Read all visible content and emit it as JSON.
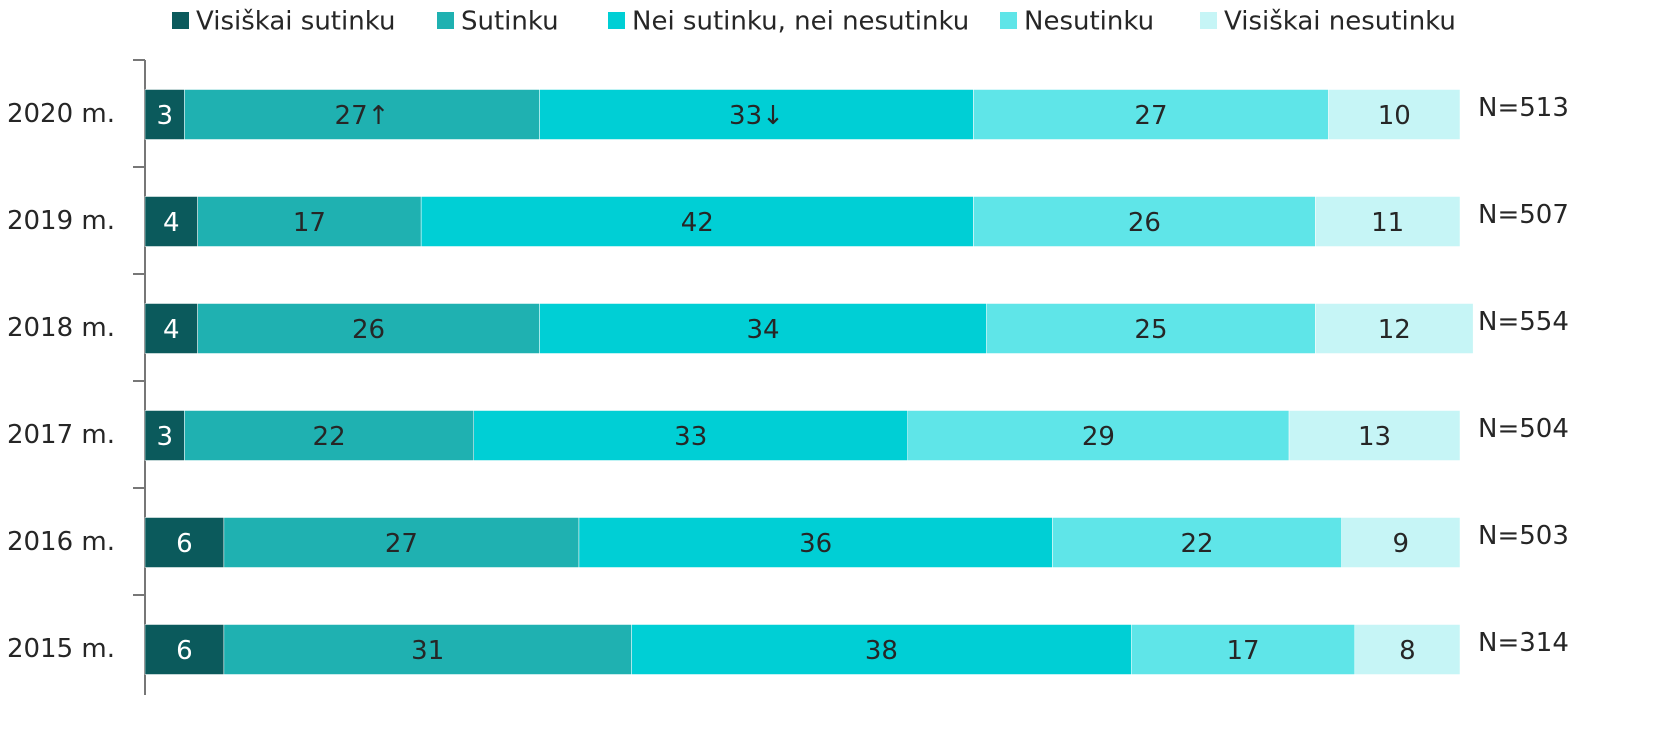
{
  "chart_data": {
    "type": "stacked_barh",
    "categories": [
      "2020 m.",
      "2019 m.",
      "2018 m.",
      "2017 m.",
      "2016 m.",
      "2015 m."
    ],
    "series": [
      {
        "name": "Visiškai sutinku",
        "color": "#0b5a5c",
        "values": [
          3,
          4,
          4,
          3,
          6,
          6
        ]
      },
      {
        "name": "Sutinku",
        "color": "#1fb1b1",
        "values": [
          27,
          17,
          26,
          22,
          27,
          31
        ],
        "value_labels": [
          "27↑",
          "17",
          "26",
          "22",
          "27",
          "31"
        ]
      },
      {
        "name": "Nei sutinku, nei nesutinku",
        "color": "#00cfd5",
        "values": [
          33,
          42,
          34,
          33,
          36,
          38
        ],
        "value_labels": [
          "33↓",
          "42",
          "34",
          "33",
          "36",
          "38"
        ]
      },
      {
        "name": "Nesutinku",
        "color": "#5fe5e8",
        "values": [
          27,
          26,
          25,
          29,
          22,
          17
        ]
      },
      {
        "name": "Visiškai nesutinku",
        "color": "#c6f5f6",
        "values": [
          10,
          11,
          12,
          13,
          9,
          8
        ]
      }
    ],
    "n_labels": [
      "N=513",
      "N=507",
      "N=554",
      "N=504",
      "N=503",
      "N=314"
    ],
    "xlim": [
      0,
      100
    ],
    "legend": "top"
  }
}
